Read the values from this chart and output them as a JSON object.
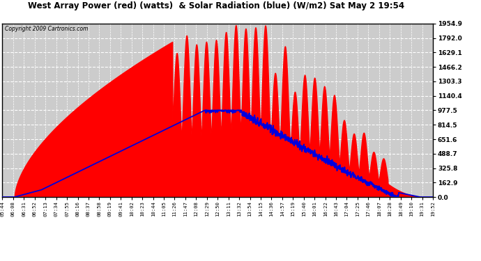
{
  "title": "West Array Power (red) (watts)  & Solar Radiation (blue) (W/m2) Sat May 2 19:54",
  "copyright": "Copyright 2009 Cartronics.com",
  "ymax": 1954.9,
  "yticks": [
    0.0,
    162.9,
    325.8,
    488.7,
    651.6,
    814.5,
    977.5,
    1140.4,
    1303.3,
    1466.2,
    1629.1,
    1792.0,
    1954.9
  ],
  "bg_color": "#ffffff",
  "plot_bg": "#cccccc",
  "grid_color": "#ffffff",
  "red_color": "#ff0000",
  "blue_color": "#0000dd",
  "xtick_labels": [
    "05:44",
    "06:08",
    "06:31",
    "06:52",
    "07:13",
    "07:34",
    "07:55",
    "08:16",
    "08:37",
    "08:58",
    "09:19",
    "09:41",
    "10:02",
    "10:23",
    "10:44",
    "11:05",
    "11:26",
    "11:47",
    "12:08",
    "12:29",
    "12:50",
    "13:11",
    "13:32",
    "13:54",
    "14:15",
    "14:36",
    "14:57",
    "15:19",
    "15:40",
    "16:01",
    "16:22",
    "16:43",
    "17:04",
    "17:25",
    "17:46",
    "18:07",
    "18:28",
    "18:49",
    "19:10",
    "19:31",
    "19:52"
  ]
}
